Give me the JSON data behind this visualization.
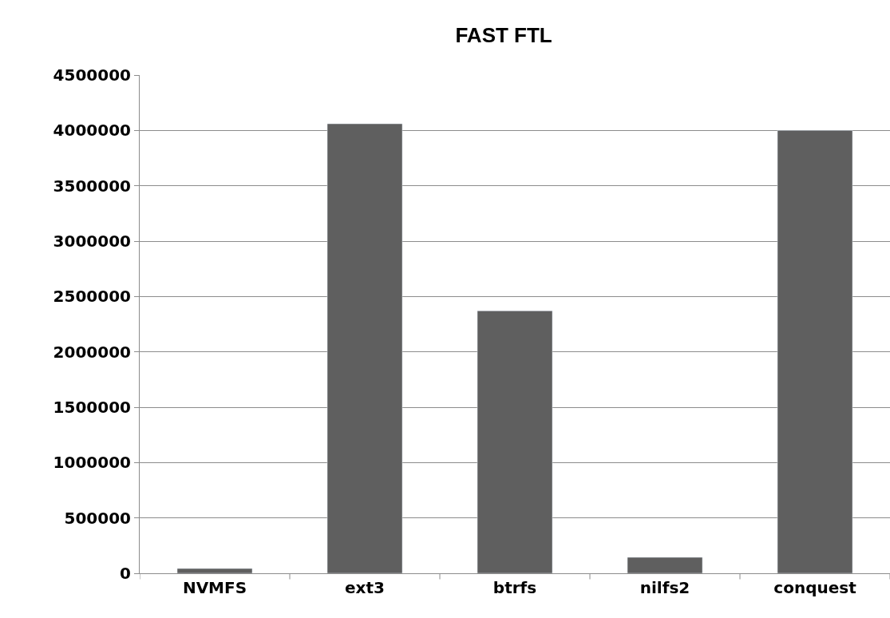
{
  "chart_data": {
    "type": "bar",
    "title": "FAST FTL",
    "categories": [
      "NVMFS",
      "ext3",
      "btrfs",
      "nilfs2",
      "conquest"
    ],
    "values": [
      43000,
      4060000,
      2370000,
      144000,
      4000000
    ],
    "color": "#5f5f5f",
    "ylim": [
      0,
      4500000
    ],
    "yticks": [
      0,
      500000,
      1000000,
      1500000,
      2000000,
      2500000,
      3000000,
      3500000,
      4000000,
      4500000
    ],
    "grid": "y"
  }
}
